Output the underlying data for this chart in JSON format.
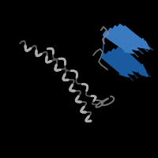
{
  "background_color": "#000000",
  "fig_width": 2.0,
  "fig_height": 2.0,
  "dpi": 100,
  "gray_color": "#888888",
  "blue_color": "#3a7abf",
  "dark_gray": "#555555",
  "light_gray": "#aaaaaa",
  "blue_dark": "#1a5a9f"
}
